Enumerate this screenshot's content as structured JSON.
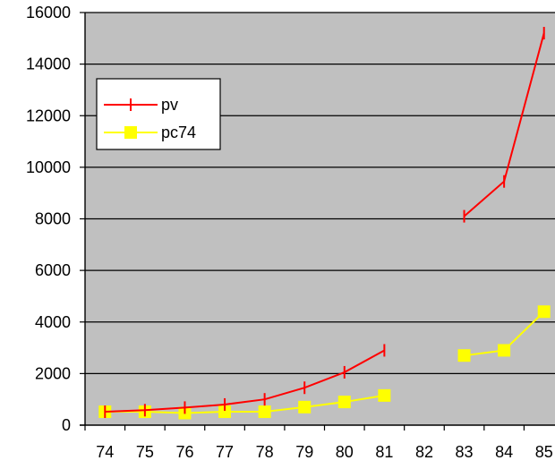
{
  "chart_data": {
    "type": "line",
    "title": "",
    "xlabel": "",
    "ylabel": "",
    "categories": [
      "74",
      "75",
      "76",
      "77",
      "78",
      "79",
      "80",
      "81",
      "82",
      "83",
      "84",
      "85"
    ],
    "ylim": [
      0,
      16000
    ],
    "yticks": [
      0,
      2000,
      4000,
      6000,
      8000,
      10000,
      12000,
      14000,
      16000
    ],
    "grid": "horizontal",
    "legend_position": "top-left",
    "plot_background": "#c0c0c0",
    "series": [
      {
        "name": "pv",
        "color": "#ff0000",
        "marker": "dash",
        "values": [
          520,
          580,
          680,
          800,
          1000,
          1450,
          2050,
          2900,
          null,
          8100,
          9450,
          15200
        ]
      },
      {
        "name": "pc74",
        "color": "#ffff00",
        "marker": "square",
        "values": [
          520,
          520,
          470,
          520,
          520,
          700,
          900,
          1150,
          null,
          2700,
          2900,
          4400
        ]
      }
    ]
  }
}
